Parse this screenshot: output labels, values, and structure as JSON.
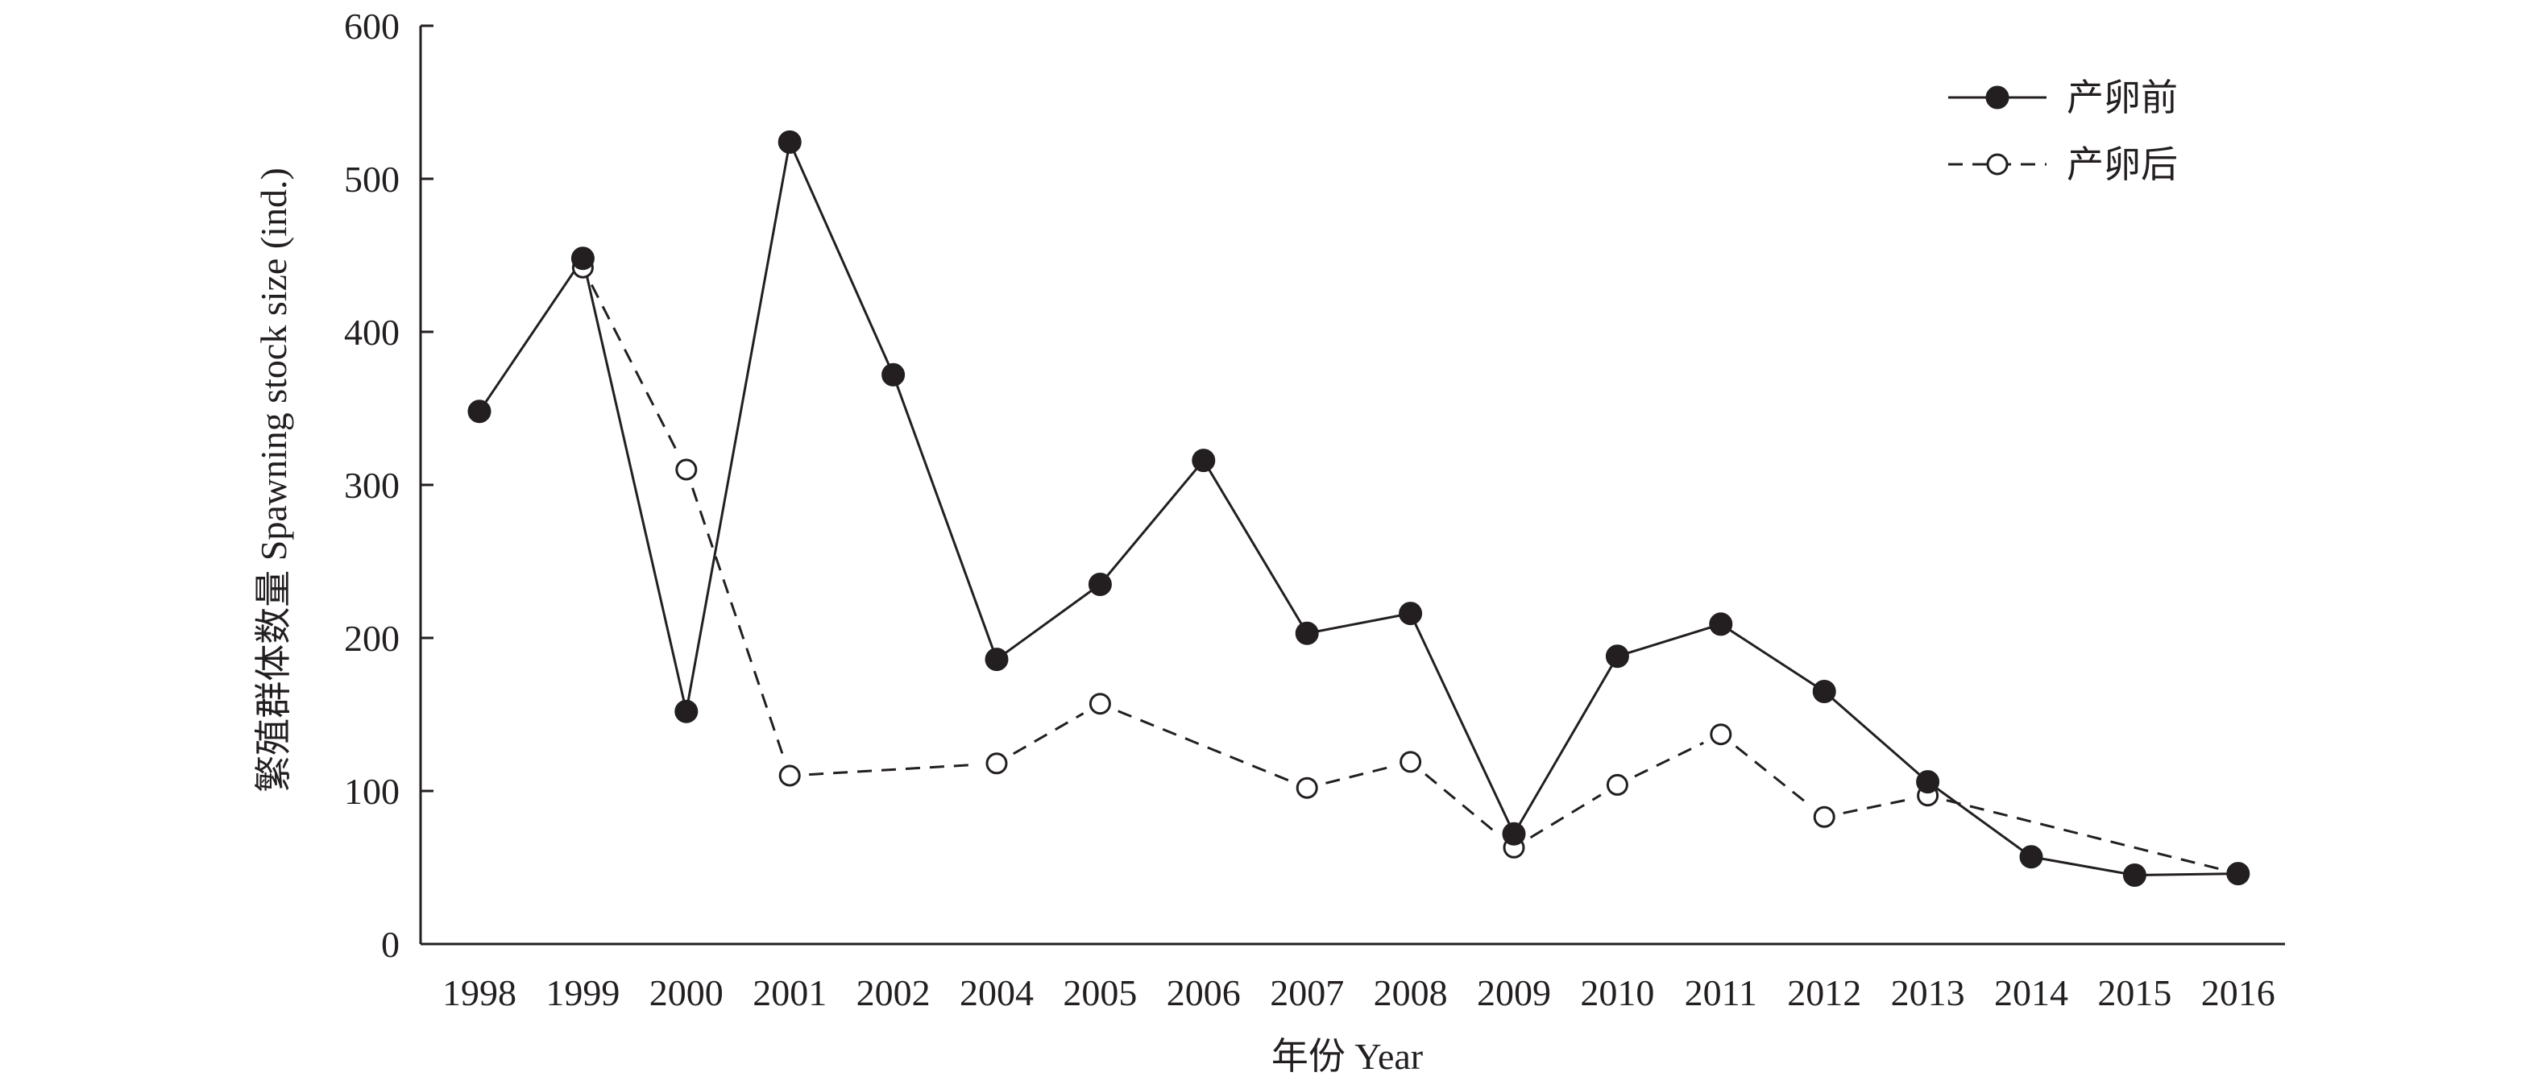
{
  "chart_data": {
    "type": "line",
    "xlabel": "年份 Year",
    "ylabel": "繁殖群体数量 Spawning stock size (ind.)",
    "ylim": [
      0,
      600
    ],
    "yticks": [
      0,
      100,
      200,
      300,
      400,
      500,
      600
    ],
    "categories": [
      "1998",
      "1999",
      "2000",
      "2001",
      "2002",
      "2004",
      "2005",
      "2006",
      "2007",
      "2008",
      "2009",
      "2010",
      "2011",
      "2012",
      "2013",
      "2014",
      "2015",
      "2016"
    ],
    "grid": false,
    "legend_position": "top-right",
    "series": [
      {
        "name": "产卵前",
        "style": "solid-filled",
        "values": [
          348,
          448,
          152,
          524,
          372,
          186,
          235,
          316,
          203,
          216,
          72,
          188,
          209,
          165,
          106,
          57,
          45,
          46
        ]
      },
      {
        "name": "产卵后",
        "style": "dashed-open",
        "values": [
          null,
          442,
          310,
          110,
          null,
          118,
          157,
          null,
          102,
          119,
          63,
          104,
          137,
          83,
          97,
          null,
          null,
          46
        ]
      }
    ]
  },
  "colors": {
    "ink": "#231f20",
    "background": "#ffffff"
  }
}
